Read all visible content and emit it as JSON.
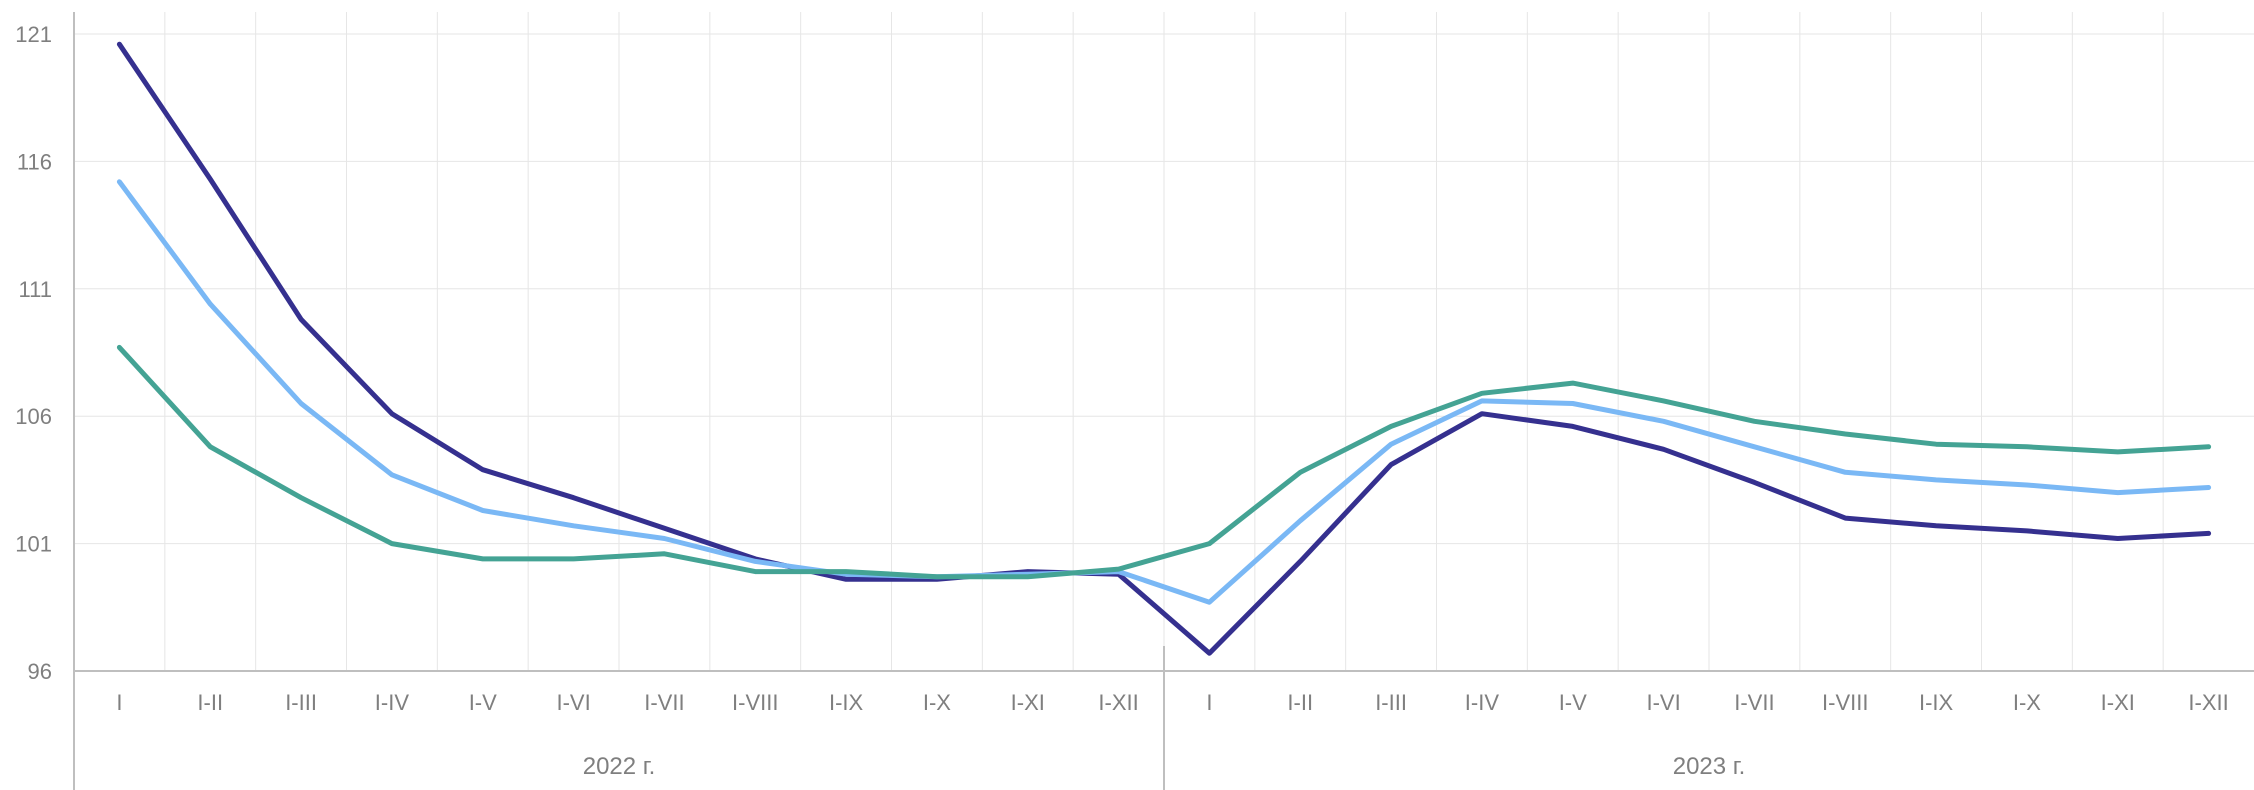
{
  "chart_data": {
    "type": "line",
    "title": "",
    "xlabel": "",
    "ylabel": "",
    "ylim": [
      96,
      121
    ],
    "y_ticks": [
      "96",
      "101",
      "106",
      "111",
      "116",
      "121"
    ],
    "grid": true,
    "legend": "none",
    "groups": [
      {
        "label": "2022 г.",
        "categories": [
          "I",
          "I-II",
          "I-III",
          "I-IV",
          "I-V",
          "I-VI",
          "I-VII",
          "I-VIII",
          "I-IX",
          "I-X",
          "I-XI",
          "I-XII"
        ]
      },
      {
        "label": "2023 г.",
        "categories": [
          "I",
          "I-II",
          "I-III",
          "I-IV",
          "I-V",
          "I-VI",
          "I-VII",
          "I-VIII",
          "I-IX",
          "I-X",
          "I-XI",
          "I-XII"
        ]
      }
    ],
    "series": [
      {
        "color": "#35308f",
        "values": [
          120.6,
          115.3,
          109.8,
          106.1,
          103.9,
          102.8,
          101.6,
          100.4,
          99.6,
          99.6,
          99.9,
          99.8,
          96.7,
          100.3,
          104.1,
          106.1,
          105.6,
          104.7,
          103.4,
          102.0,
          101.7,
          101.5,
          101.2,
          101.4
        ]
      },
      {
        "color": "#7ab8f5",
        "values": [
          115.2,
          110.4,
          106.5,
          103.7,
          102.3,
          101.7,
          101.2,
          100.3,
          99.8,
          99.7,
          99.8,
          99.9,
          98.7,
          101.9,
          104.9,
          106.6,
          106.5,
          105.8,
          104.8,
          103.8,
          103.5,
          103.3,
          103.0,
          103.2
        ]
      },
      {
        "color": "#44a394",
        "values": [
          108.7,
          104.8,
          102.8,
          101.0,
          100.4,
          100.4,
          100.6,
          99.9,
          99.9,
          99.7,
          99.7,
          100.0,
          101.0,
          103.8,
          105.6,
          106.9,
          107.3,
          106.6,
          105.8,
          105.3,
          104.9,
          104.8,
          104.6,
          104.8
        ]
      }
    ]
  }
}
